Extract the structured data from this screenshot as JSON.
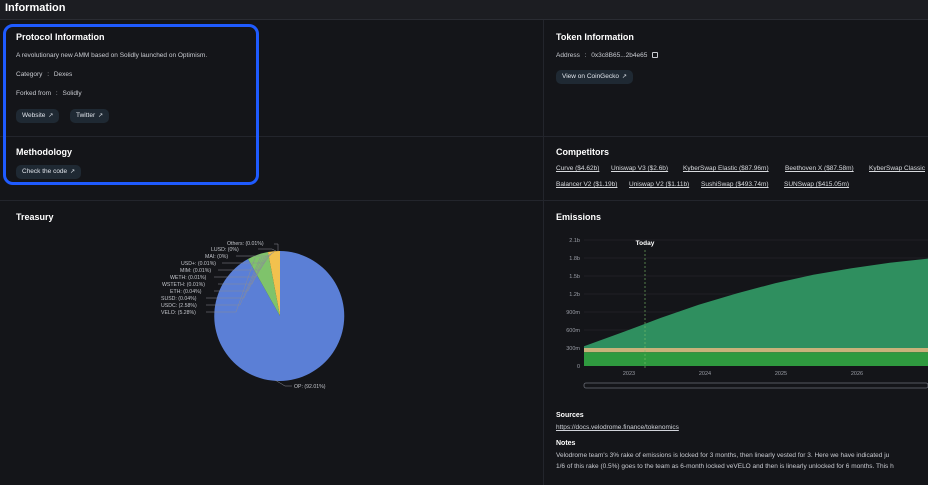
{
  "header": {
    "title": "Information"
  },
  "protocol": {
    "heading": "Protocol Information",
    "description": "A revolutionary new AMM based on Solidly launched on Optimism.",
    "category_label": "Category",
    "category_value": "Dexes",
    "forked_label": "Forked from",
    "forked_value": "Solidly",
    "website_label": "Website",
    "twitter_label": "Twitter",
    "separator": ":",
    "arrow": "↗"
  },
  "methodology": {
    "heading": "Methodology",
    "check_code_label": "Check the code"
  },
  "token": {
    "heading": "Token Information",
    "address_label": "Address",
    "address_value": "0x3c8B65...2b4e65",
    "coingecko_label": "View on CoinGecko",
    "copy_icon": "copy-icon"
  },
  "competitors": {
    "heading": "Competitors",
    "row1": [
      "Curve ($4.62b)",
      "Uniswap V3 ($2.6b)",
      "KyberSwap Elastic ($87.96m)",
      "Beethoven X ($87.58m)",
      "KyberSwap Classic"
    ],
    "row2": [
      "Balancer V2 ($1.19b)",
      "Uniswap V2 ($1.11b)",
      "SushiSwap ($493.74m)",
      "SUNSwap ($415.05m)"
    ]
  },
  "treasury": {
    "heading": "Treasury",
    "labels": [
      "Others: (0.01%)",
      "LUSD: (0%)",
      "MAI: (0%)",
      "USD+: (0.01%)",
      "MIM: (0.01%)",
      "WETH: (0.01%)",
      "WSTETH: (0.01%)",
      "ETH: (0.04%)",
      "SUSD: (0.04%)",
      "USDC: (2.58%)",
      "VELO: (5.28%)"
    ],
    "op_label": "OP: (92.01%)",
    "colors": {
      "op": "#5b7fd6",
      "velo": "#7fc36b",
      "usdc": "#f2c14e",
      "others": "#e08a5a"
    }
  },
  "emissions": {
    "heading": "Emissions",
    "today_label": "Today",
    "y_ticks": [
      "2.1b",
      "1.8b",
      "1.5b",
      "1.2b",
      "900m",
      "600m",
      "300m",
      "0"
    ],
    "x_ticks": [
      "2023",
      "2024",
      "2025",
      "2026"
    ],
    "sources_heading": "Sources",
    "sources_link": "https://docs.velodrome.finance/tokenomics",
    "notes_heading": "Notes",
    "notes_line1": "Velodrome team's 3% rake of emissions is locked for 3 months, then linearly vested for 3. Here we have indicated ju",
    "notes_line2": "1/6 of this rake (0.5%) goes to the team as 6-month locked veVELO and then is linearly unlocked for 6 months. This h"
  },
  "chart_data": {
    "type": "area",
    "title": "",
    "xlabel": "",
    "ylabel": "",
    "x": [
      "2022.5",
      "2023",
      "2023.5",
      "2024",
      "2024.5",
      "2025",
      "2025.5",
      "2026",
      "2026.5",
      "2027"
    ],
    "ylim": [
      0,
      2100000000
    ],
    "series": [
      {
        "values": [
          330000000,
          560000000,
          800000000,
          1020000000,
          1210000000,
          1380000000,
          1520000000,
          1630000000,
          1720000000,
          1790000000
        ]
      },
      {
        "values": [
          300000000,
          300000000,
          300000000,
          300000000,
          300000000,
          300000000,
          300000000,
          300000000,
          300000000,
          300000000
        ]
      },
      {
        "values": [
          230000000,
          230000000,
          230000000,
          230000000,
          230000000,
          230000000,
          230000000,
          230000000,
          230000000,
          230000000
        ]
      }
    ],
    "grid": true,
    "legend": "none"
  }
}
